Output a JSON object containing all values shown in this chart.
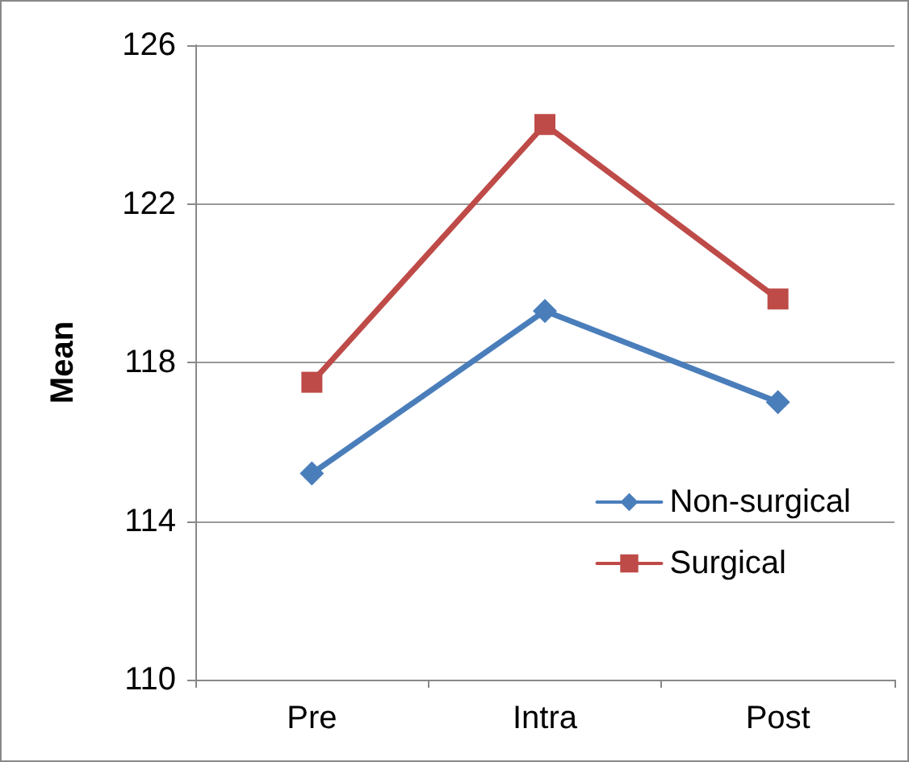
{
  "chart_data": {
    "type": "line",
    "ylabel": "Mean",
    "categories": [
      "Pre",
      "Intra",
      "Post"
    ],
    "series": [
      {
        "name": "Non-surgical",
        "color": "#4a7ebb",
        "values": [
          115.2,
          119.3,
          117.0
        ],
        "marker": "diamond"
      },
      {
        "name": "Surgical",
        "color": "#be4b48",
        "values": [
          117.5,
          124.0,
          119.6
        ],
        "marker": "square"
      }
    ],
    "ylim": [
      110,
      126
    ],
    "yticks": [
      110,
      114,
      118,
      122,
      126
    ],
    "grid": "y",
    "legend": "right",
    "line_style": "solid"
  }
}
